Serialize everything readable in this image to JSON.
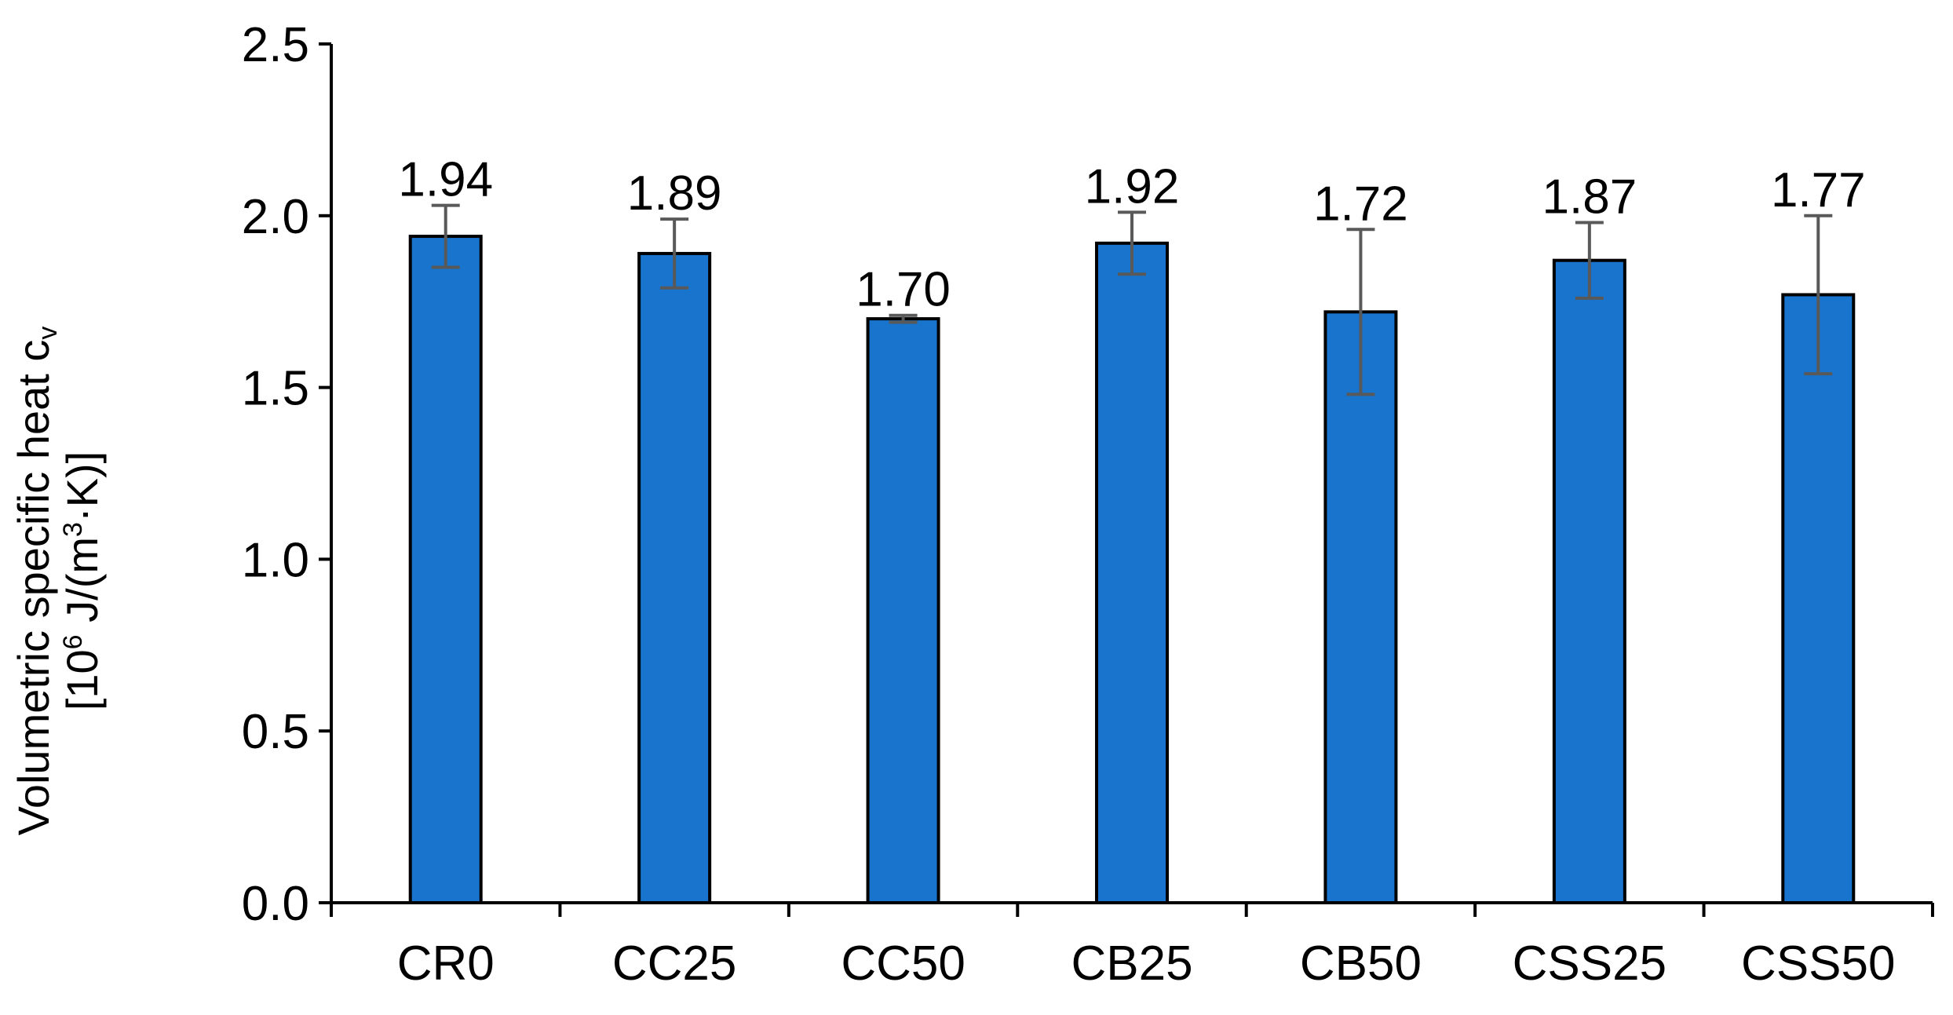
{
  "chart_data": {
    "type": "bar",
    "title": "",
    "xlabel": "",
    "ylabel": {
      "line1": {
        "text": "Volumetric specific heat c",
        "subscript": "v"
      },
      "line2": {
        "prefix": "[10",
        "exp": "6",
        "middle": " J/(m",
        "exp2": "3",
        "suffix": "·K)]"
      }
    },
    "ylim": [
      0,
      2.5
    ],
    "yticks": [
      "0.0",
      "0.5",
      "1.0",
      "1.5",
      "2.0",
      "2.5"
    ],
    "categories": [
      "CR0",
      "CC25",
      "CC50",
      "CB25",
      "CB50",
      "CSS25",
      "CSS50"
    ],
    "values": [
      1.94,
      1.89,
      1.7,
      1.92,
      1.72,
      1.87,
      1.77
    ],
    "value_labels": [
      "1.94",
      "1.89",
      "1.70",
      "1.92",
      "1.72",
      "1.87",
      "1.77"
    ],
    "errors": [
      0.09,
      0.1,
      0.01,
      0.09,
      0.24,
      0.11,
      0.23
    ],
    "grid": false,
    "legend": "none",
    "colors": {
      "bar_fill": "#1874CD",
      "bar_stroke": "#000000",
      "error_bar": "#595959",
      "axis": "#000000"
    }
  }
}
